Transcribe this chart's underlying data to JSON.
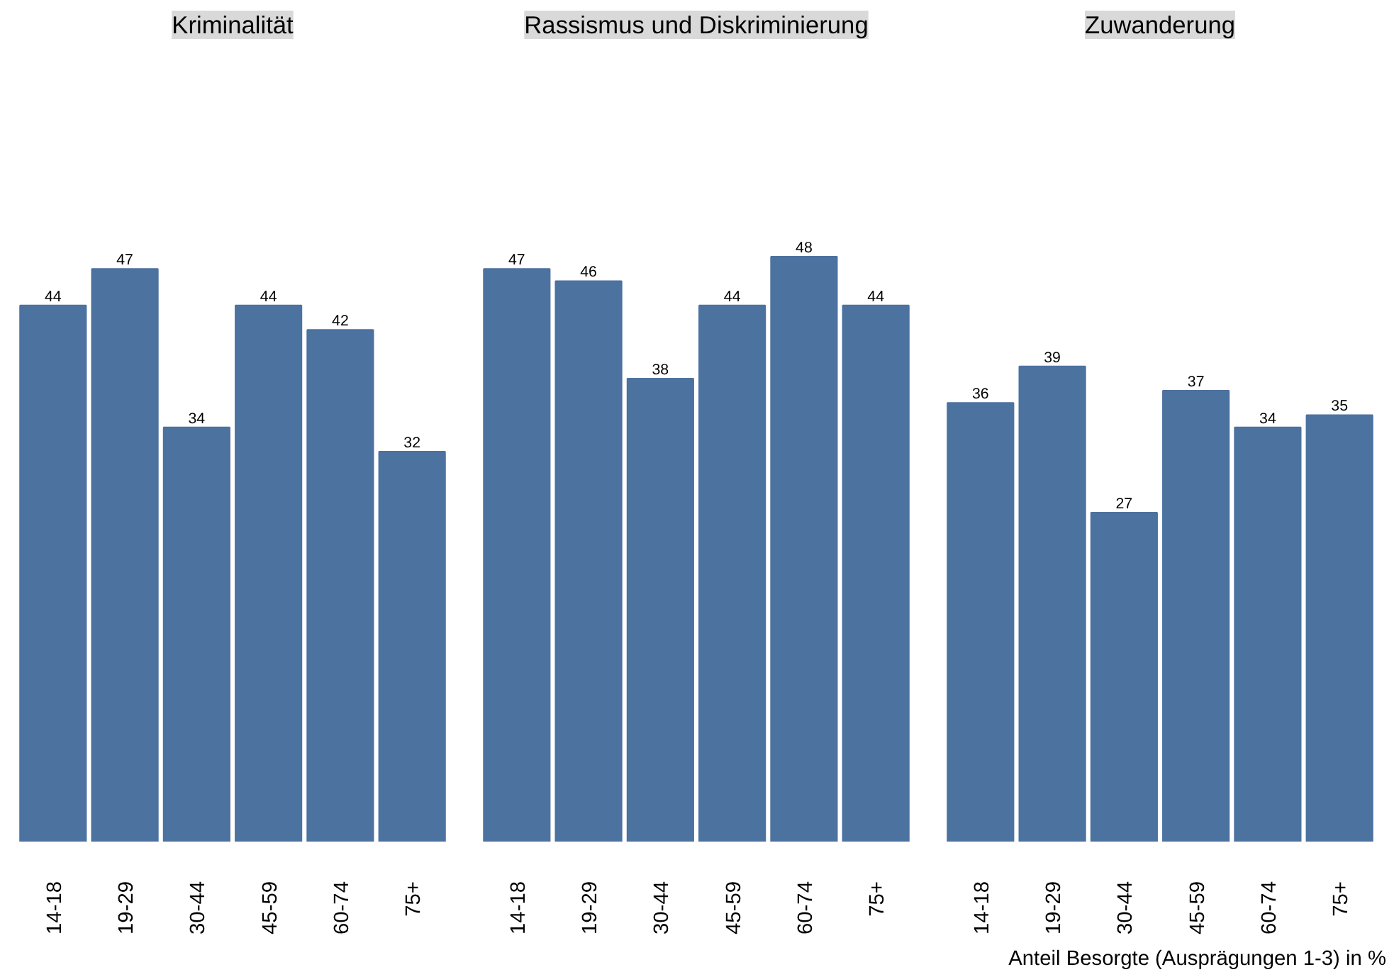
{
  "chart_data": [
    {
      "type": "bar",
      "title": "Kriminalität",
      "categories": [
        "14-18",
        "19-29",
        "30-44",
        "45-59",
        "60-74",
        "75+"
      ],
      "values": [
        44,
        47,
        34,
        44,
        42,
        32
      ],
      "color": "#4c72a0",
      "data_labels": true
    },
    {
      "type": "bar",
      "title": "Rassismus und Diskriminierung",
      "categories": [
        "14-18",
        "19-29",
        "30-44",
        "45-59",
        "60-74",
        "75+"
      ],
      "values": [
        47,
        46,
        38,
        44,
        48,
        44
      ],
      "color": "#4c72a0",
      "data_labels": true
    },
    {
      "type": "bar",
      "title": "Zuwanderung",
      "categories": [
        "14-18",
        "19-29",
        "30-44",
        "45-59",
        "60-74",
        "75+"
      ],
      "values": [
        36,
        39,
        27,
        37,
        34,
        35
      ],
      "color": "#4c72a0",
      "data_labels": true,
      "annotations": [
        "Anteil Besorgte (Ausprägungen 1-3) in %"
      ]
    }
  ]
}
